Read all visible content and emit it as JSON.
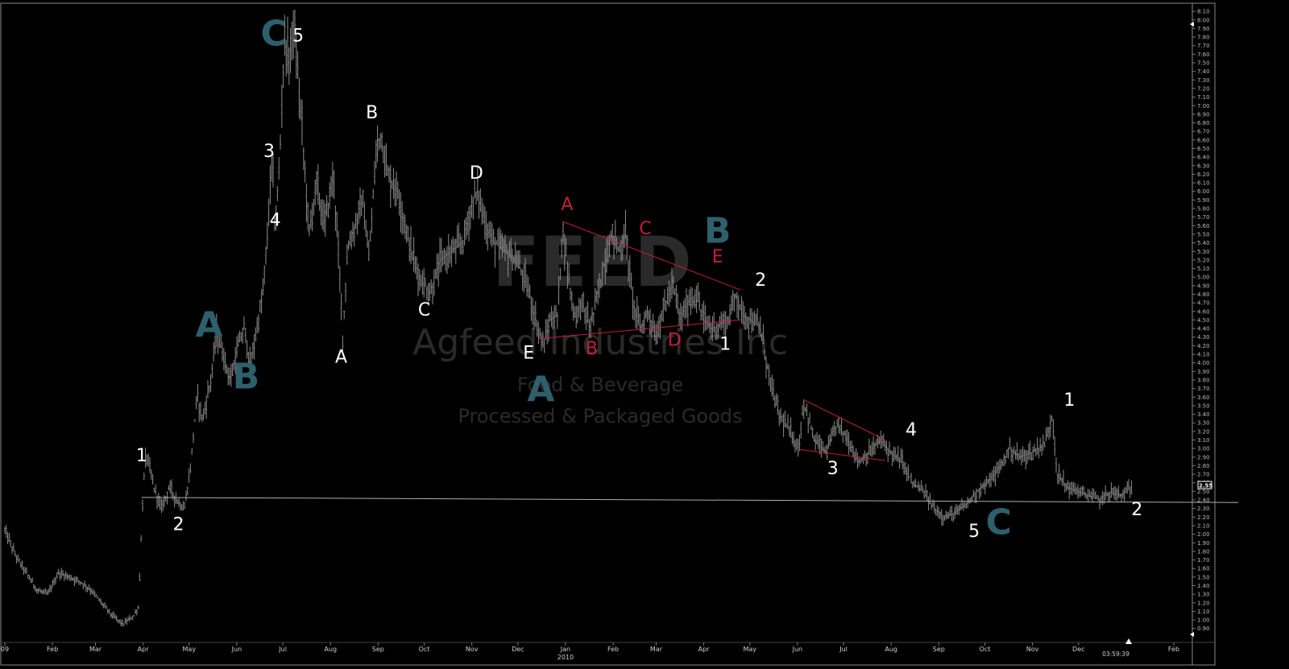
{
  "chart_data": {
    "type": "candlestick",
    "ticker_watermark": "FEED",
    "company_watermark": "Agfeed Industries Inc",
    "sector_watermark": "Food & Beverage",
    "industry_watermark": "Processed & Packaged Goods",
    "y_ticks": [
      "8.10",
      "8.00",
      "7.90",
      "7.80",
      "7.70",
      "7.60",
      "7.50",
      "7.40",
      "7.30",
      "7.20",
      "7.10",
      "7.00",
      "6.90",
      "6.80",
      "6.70",
      "6.60",
      "6.50",
      "6.40",
      "6.30",
      "6.20",
      "6.10",
      "6.00",
      "5.90",
      "5.80",
      "5.70",
      "5.60",
      "5.50",
      "5.40",
      "5.30",
      "5.20",
      "5.10",
      "5.00",
      "4.90",
      "4.80",
      "4.70",
      "4.60",
      "4.50",
      "4.40",
      "4.30",
      "4.20",
      "4.10",
      "4.00",
      "3.90",
      "3.80",
      "3.70",
      "3.60",
      "3.50",
      "3.40",
      "3.30",
      "3.20",
      "3.10",
      "3.00",
      "2.90",
      "2.80",
      "2.70",
      "2.60",
      "2.50",
      "2.40",
      "2.30",
      "2.20",
      "2.10",
      "2.00",
      "1.90",
      "1.80",
      "1.70",
      "1.60",
      "1.50",
      "1.40",
      "1.30",
      "1.20",
      "1.10",
      "1.00",
      "0.90"
    ],
    "ylim": [
      0.86,
      8.12
    ],
    "x_ticks": [
      {
        "label": "09",
        "date": "2009-01-01"
      },
      {
        "label": "Feb",
        "date": "2009-02-01"
      },
      {
        "label": "Mar",
        "date": "2009-03-01"
      },
      {
        "label": "Apr",
        "date": "2009-04-01"
      },
      {
        "label": "May",
        "date": "2009-05-01"
      },
      {
        "label": "Jun",
        "date": "2009-06-01"
      },
      {
        "label": "Jul",
        "date": "2009-07-01"
      },
      {
        "label": "Aug",
        "date": "2009-08-01"
      },
      {
        "label": "Sep",
        "date": "2009-09-01"
      },
      {
        "label": "Oct",
        "date": "2009-10-01"
      },
      {
        "label": "Nov",
        "date": "2009-11-01"
      },
      {
        "label": "Dec",
        "date": "2009-12-01"
      },
      {
        "label": "Jan",
        "date": "2010-01-01"
      },
      {
        "label": "Feb",
        "date": "2010-02-01"
      },
      {
        "label": "Mar",
        "date": "2010-03-01"
      },
      {
        "label": "Apr",
        "date": "2010-04-01"
      },
      {
        "label": "May",
        "date": "2010-05-01"
      },
      {
        "label": "Jun",
        "date": "2010-06-01"
      },
      {
        "label": "Jul",
        "date": "2010-07-01"
      },
      {
        "label": "Aug",
        "date": "2010-08-01"
      },
      {
        "label": "Sep",
        "date": "2010-09-01"
      },
      {
        "label": "Oct",
        "date": "2010-10-01"
      },
      {
        "label": "Nov",
        "date": "2010-11-01"
      },
      {
        "label": "Dec",
        "date": "2010-12-01"
      },
      {
        "label": "Feb",
        "date": "2011-02-01"
      }
    ],
    "year_label": {
      "label": "2010",
      "date": "2010-01-01"
    },
    "last_price_label": "2.55",
    "time_label": "03:59:39",
    "price_path": [
      [
        "2009-01-01",
        2.05
      ],
      [
        "2009-01-08",
        1.75
      ],
      [
        "2009-01-15",
        1.55
      ],
      [
        "2009-01-22",
        1.35
      ],
      [
        "2009-01-29",
        1.3
      ],
      [
        "2009-02-05",
        1.55
      ],
      [
        "2009-02-12",
        1.5
      ],
      [
        "2009-02-19",
        1.45
      ],
      [
        "2009-02-26",
        1.35
      ],
      [
        "2009-03-05",
        1.2
      ],
      [
        "2009-03-12",
        1.05
      ],
      [
        "2009-03-19",
        0.95
      ],
      [
        "2009-03-26",
        1.05
      ],
      [
        "2009-03-29",
        1.15
      ],
      [
        "2009-04-01",
        2.5
      ],
      [
        "2009-04-03",
        2.95
      ],
      [
        "2009-04-08",
        2.55
      ],
      [
        "2009-04-13",
        2.3
      ],
      [
        "2009-04-18",
        2.55
      ],
      [
        "2009-04-23",
        2.4
      ],
      [
        "2009-04-28",
        2.3
      ],
      [
        "2009-05-02",
        2.8
      ],
      [
        "2009-05-06",
        3.6
      ],
      [
        "2009-05-10",
        3.35
      ],
      [
        "2009-05-15",
        3.8
      ],
      [
        "2009-05-19",
        4.35
      ],
      [
        "2009-05-23",
        4.1
      ],
      [
        "2009-05-28",
        3.8
      ],
      [
        "2009-06-02",
        4.2
      ],
      [
        "2009-06-06",
        4.4
      ],
      [
        "2009-06-10",
        3.95
      ],
      [
        "2009-06-14",
        4.4
      ],
      [
        "2009-06-18",
        4.8
      ],
      [
        "2009-06-21",
        5.5
      ],
      [
        "2009-06-24",
        6.4
      ],
      [
        "2009-06-26",
        5.5
      ],
      [
        "2009-06-29",
        6.4
      ],
      [
        "2009-07-02",
        7.8
      ],
      [
        "2009-07-05",
        7.5
      ],
      [
        "2009-07-08",
        7.95
      ],
      [
        "2009-07-11",
        7.3
      ],
      [
        "2009-07-14",
        6.6
      ],
      [
        "2009-07-18",
        5.5
      ],
      [
        "2009-07-23",
        6.1
      ],
      [
        "2009-07-28",
        5.6
      ],
      [
        "2009-08-03",
        6.2
      ],
      [
        "2009-08-07",
        5.0
      ],
      [
        "2009-08-09",
        4.3
      ],
      [
        "2009-08-12",
        5.3
      ],
      [
        "2009-08-17",
        5.6
      ],
      [
        "2009-08-22",
        5.9
      ],
      [
        "2009-08-26",
        5.2
      ],
      [
        "2009-08-31",
        6.5
      ],
      [
        "2009-09-03",
        6.7
      ],
      [
        "2009-09-07",
        6.2
      ],
      [
        "2009-09-14",
        6.0
      ],
      [
        "2009-09-21",
        5.4
      ],
      [
        "2009-09-28",
        5.0
      ],
      [
        "2009-10-05",
        4.8
      ],
      [
        "2009-10-12",
        5.2
      ],
      [
        "2009-10-19",
        5.3
      ],
      [
        "2009-10-26",
        5.4
      ],
      [
        "2009-11-02",
        5.9
      ],
      [
        "2009-11-05",
        6.0
      ],
      [
        "2009-11-10",
        5.6
      ],
      [
        "2009-11-16",
        5.4
      ],
      [
        "2009-11-23",
        5.3
      ],
      [
        "2009-11-30",
        5.2
      ],
      [
        "2009-12-07",
        4.9
      ],
      [
        "2009-12-14",
        4.4
      ],
      [
        "2009-12-18",
        4.2
      ],
      [
        "2009-12-22",
        4.5
      ],
      [
        "2009-12-27",
        4.55
      ],
      [
        "2009-12-30",
        5.6
      ],
      [
        "2010-01-03",
        5.0
      ],
      [
        "2010-01-07",
        4.55
      ],
      [
        "2010-01-12",
        4.7
      ],
      [
        "2010-01-17",
        4.4
      ],
      [
        "2010-01-22",
        4.8
      ],
      [
        "2010-01-28",
        5.3
      ],
      [
        "2010-02-01",
        5.5
      ],
      [
        "2010-02-05",
        5.3
      ],
      [
        "2010-02-09",
        5.5
      ],
      [
        "2010-02-14",
        4.7
      ],
      [
        "2010-02-19",
        4.4
      ],
      [
        "2010-02-24",
        4.6
      ],
      [
        "2010-03-01",
        4.3
      ],
      [
        "2010-03-07",
        4.7
      ],
      [
        "2010-03-12",
        4.9
      ],
      [
        "2010-03-17",
        4.5
      ],
      [
        "2010-03-22",
        4.7
      ],
      [
        "2010-03-27",
        4.8
      ],
      [
        "2010-04-01",
        4.5
      ],
      [
        "2010-04-07",
        4.4
      ],
      [
        "2010-04-12",
        4.45
      ],
      [
        "2010-04-17",
        4.5
      ],
      [
        "2010-04-22",
        4.8
      ],
      [
        "2010-04-27",
        4.55
      ],
      [
        "2010-05-02",
        4.5
      ],
      [
        "2010-05-08",
        4.4
      ],
      [
        "2010-05-14",
        3.8
      ],
      [
        "2010-05-20",
        3.4
      ],
      [
        "2010-05-27",
        3.2
      ],
      [
        "2010-06-02",
        3.0
      ],
      [
        "2010-06-05",
        3.55
      ],
      [
        "2010-06-12",
        3.1
      ],
      [
        "2010-06-20",
        2.95
      ],
      [
        "2010-06-27",
        3.3
      ],
      [
        "2010-07-04",
        3.1
      ],
      [
        "2010-07-11",
        2.85
      ],
      [
        "2010-07-18",
        2.95
      ],
      [
        "2010-07-25",
        3.1
      ],
      [
        "2010-08-01",
        2.95
      ],
      [
        "2010-08-08",
        2.85
      ],
      [
        "2010-08-15",
        2.6
      ],
      [
        "2010-08-22",
        2.5
      ],
      [
        "2010-08-29",
        2.3
      ],
      [
        "2010-09-05",
        2.2
      ],
      [
        "2010-09-12",
        2.25
      ],
      [
        "2010-09-19",
        2.35
      ],
      [
        "2010-09-26",
        2.5
      ],
      [
        "2010-10-03",
        2.6
      ],
      [
        "2010-10-10",
        2.75
      ],
      [
        "2010-10-17",
        3.0
      ],
      [
        "2010-10-24",
        2.9
      ],
      [
        "2010-10-31",
        2.95
      ],
      [
        "2010-11-05",
        3.0
      ],
      [
        "2010-11-10",
        3.1
      ],
      [
        "2010-11-14",
        3.4
      ],
      [
        "2010-11-17",
        2.7
      ],
      [
        "2010-11-24",
        2.55
      ],
      [
        "2010-12-01",
        2.5
      ],
      [
        "2010-12-08",
        2.45
      ],
      [
        "2010-12-15",
        2.4
      ],
      [
        "2010-12-22",
        2.5
      ],
      [
        "2010-12-29",
        2.45
      ],
      [
        "2011-01-05",
        2.55
      ]
    ],
    "trendlines": [
      {
        "color": "#c41e3a",
        "from": [
          "2009-12-30",
          5.65
        ],
        "to": [
          "2010-04-25",
          4.85
        ]
      },
      {
        "color": "#c41e3a",
        "from": [
          "2009-12-14",
          4.28
        ],
        "to": [
          "2010-04-25",
          4.5
        ]
      },
      {
        "color": "#c41e3a",
        "from": [
          "2010-06-05",
          3.57
        ],
        "to": [
          "2010-07-28",
          3.1
        ]
      },
      {
        "color": "#c41e3a",
        "from": [
          "2010-06-02",
          2.99
        ],
        "to": [
          "2010-07-28",
          2.86
        ]
      },
      {
        "color": "#b0b0b0",
        "from": [
          "2009-03-31",
          2.43
        ],
        "to": [
          "2011-03-15",
          2.37
        ]
      }
    ],
    "annotations": [
      {
        "text": "C",
        "color": "#2e5f6d",
        "size": 44,
        "date": "2009-06-25",
        "price": 7.7
      },
      {
        "text": "5",
        "color": "#ffffff",
        "size": 22,
        "date": "2009-07-11",
        "price": 7.75
      },
      {
        "text": "3",
        "color": "#ffffff",
        "size": 22,
        "date": "2009-06-22",
        "price": 6.4
      },
      {
        "text": "4",
        "color": "#ffffff",
        "size": 22,
        "date": "2009-06-26",
        "price": 5.6
      },
      {
        "text": "A",
        "color": "#2e5f6d",
        "size": 44,
        "date": "2009-05-14",
        "price": 4.3
      },
      {
        "text": "B",
        "color": "#2e5f6d",
        "size": 44,
        "date": "2009-06-07",
        "price": 3.7
      },
      {
        "text": "1",
        "color": "#ffffff",
        "size": 22,
        "date": "2009-03-31",
        "price": 2.85
      },
      {
        "text": "2",
        "color": "#ffffff",
        "size": 22,
        "date": "2009-04-24",
        "price": 2.05
      },
      {
        "text": "A",
        "color": "#ffffff",
        "size": 22,
        "date": "2009-08-08",
        "price": 4.0
      },
      {
        "text": "B",
        "color": "#ffffff",
        "size": 22,
        "date": "2009-08-28",
        "price": 6.85
      },
      {
        "text": "C",
        "color": "#ffffff",
        "size": 22,
        "date": "2009-10-01",
        "price": 4.55
      },
      {
        "text": "D",
        "color": "#ffffff",
        "size": 22,
        "date": "2009-11-04",
        "price": 6.15
      },
      {
        "text": "E",
        "color": "#ffffff",
        "size": 22,
        "date": "2009-12-08",
        "price": 4.05
      },
      {
        "text": "A",
        "color": "#2e5f6d",
        "size": 44,
        "date": "2009-12-16",
        "price": 3.55
      },
      {
        "text": "A",
        "color": "#c41e3a",
        "size": 22,
        "date": "2010-01-02",
        "price": 5.78
      },
      {
        "text": "B",
        "color": "#c41e3a",
        "size": 22,
        "date": "2010-01-18",
        "price": 4.1
      },
      {
        "text": "C",
        "color": "#c41e3a",
        "size": 22,
        "date": "2010-02-22",
        "price": 5.5
      },
      {
        "text": "D",
        "color": "#c41e3a",
        "size": 22,
        "date": "2010-03-13",
        "price": 4.2
      },
      {
        "text": "E",
        "color": "#c41e3a",
        "size": 22,
        "date": "2010-04-10",
        "price": 5.17
      },
      {
        "text": "B",
        "color": "#2e5f6d",
        "size": 44,
        "date": "2010-04-10",
        "price": 5.4
      },
      {
        "text": "1",
        "color": "#ffffff",
        "size": 22,
        "date": "2010-04-15",
        "price": 4.15
      },
      {
        "text": "2",
        "color": "#ffffff",
        "size": 22,
        "date": "2010-05-08",
        "price": 4.9
      },
      {
        "text": "3",
        "color": "#ffffff",
        "size": 22,
        "date": "2010-06-24",
        "price": 2.7
      },
      {
        "text": "4",
        "color": "#ffffff",
        "size": 22,
        "date": "2010-08-14",
        "price": 3.15
      },
      {
        "text": "5",
        "color": "#ffffff",
        "size": 22,
        "date": "2010-09-24",
        "price": 1.97
      },
      {
        "text": "C",
        "color": "#2e5f6d",
        "size": 44,
        "date": "2010-10-10",
        "price": 2.0
      },
      {
        "text": "1",
        "color": "#ffffff",
        "size": 22,
        "date": "2010-11-25",
        "price": 3.5
      },
      {
        "text": "2",
        "color": "#ffffff",
        "size": 22,
        "date": "2011-01-08",
        "price": 2.22
      }
    ]
  }
}
